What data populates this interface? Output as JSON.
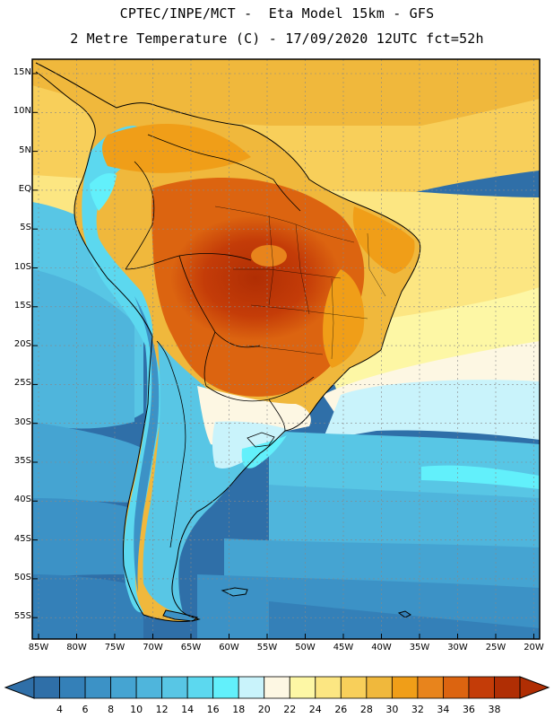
{
  "header": {
    "title_line1": "CPTEC/INPE/MCT -  Eta Model 15km - GFS",
    "title_line2": "2 Metre Temperature (C) - 17/09/2020 12UTC fct=52h"
  },
  "axes": {
    "lat_labels": [
      "15N",
      "10N",
      "5N",
      "EQ",
      "5S",
      "10S",
      "15S",
      "20S",
      "25S",
      "30S",
      "35S",
      "40S",
      "45S",
      "50S",
      "55S"
    ],
    "lon_labels": [
      "85W",
      "80W",
      "75W",
      "70W",
      "65W",
      "60W",
      "55W",
      "50W",
      "45W",
      "40W",
      "35W",
      "30W",
      "25W",
      "20W"
    ]
  },
  "colorbar": {
    "labels": [
      "4",
      "6",
      "8",
      "10",
      "12",
      "14",
      "16",
      "18",
      "20",
      "22",
      "24",
      "26",
      "28",
      "30",
      "32",
      "34",
      "36",
      "38"
    ],
    "colors": [
      "#2f6fa8",
      "#3480b8",
      "#3c92c6",
      "#45a4d2",
      "#4fb5dc",
      "#58c6e5",
      "#5cd8ef",
      "#62f0fb",
      "#c9f3fb",
      "#fdf7e3",
      "#fdf7a5",
      "#fce682",
      "#f8cf5a",
      "#f0b83c",
      "#f09e18",
      "#e8841c",
      "#dc6410",
      "#c43c08",
      "#b02e04"
    ],
    "low_arrow_color": "#2f6fa8",
    "high_arrow_color": "#b02e04"
  }
}
